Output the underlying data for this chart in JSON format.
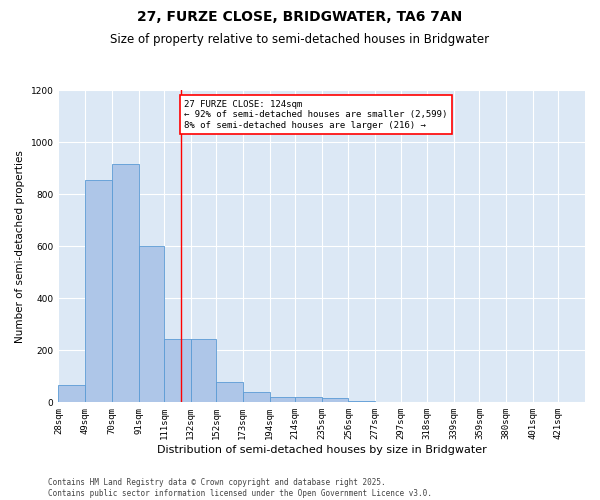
{
  "title": "27, FURZE CLOSE, BRIDGWATER, TA6 7AN",
  "subtitle": "Size of property relative to semi-detached houses in Bridgwater",
  "xlabel": "Distribution of semi-detached houses by size in Bridgwater",
  "ylabel": "Number of semi-detached properties",
  "footer_line1": "Contains HM Land Registry data © Crown copyright and database right 2025.",
  "footer_line2": "Contains public sector information licensed under the Open Government Licence v3.0.",
  "bar_edges": [
    28,
    49,
    70,
    91,
    111,
    132,
    152,
    173,
    194,
    214,
    235,
    256,
    277,
    297,
    318,
    339,
    359,
    380,
    401,
    421,
    442
  ],
  "bar_heights": [
    65,
    855,
    915,
    600,
    245,
    245,
    80,
    38,
    22,
    22,
    18,
    7,
    1,
    0,
    0,
    0,
    0,
    0,
    0,
    0
  ],
  "bar_color": "#aec6e8",
  "bar_edgecolor": "#5b9bd5",
  "property_line_x": 124,
  "property_line_color": "red",
  "annotation_title": "27 FURZE CLOSE: 124sqm",
  "annotation_line2": "← 92% of semi-detached houses are smaller (2,599)",
  "annotation_line3": "8% of semi-detached houses are larger (216) →",
  "annotation_box_color": "red",
  "ylim": [
    0,
    1200
  ],
  "yticks": [
    0,
    200,
    400,
    600,
    800,
    1000,
    1200
  ],
  "bg_color": "#dce8f5",
  "title_fontsize": 10,
  "subtitle_fontsize": 8.5,
  "tick_fontsize": 6.5,
  "ylabel_fontsize": 7.5,
  "xlabel_fontsize": 8,
  "annotation_fontsize": 6.5,
  "footer_fontsize": 5.5,
  "xlim": [
    28,
    442
  ]
}
